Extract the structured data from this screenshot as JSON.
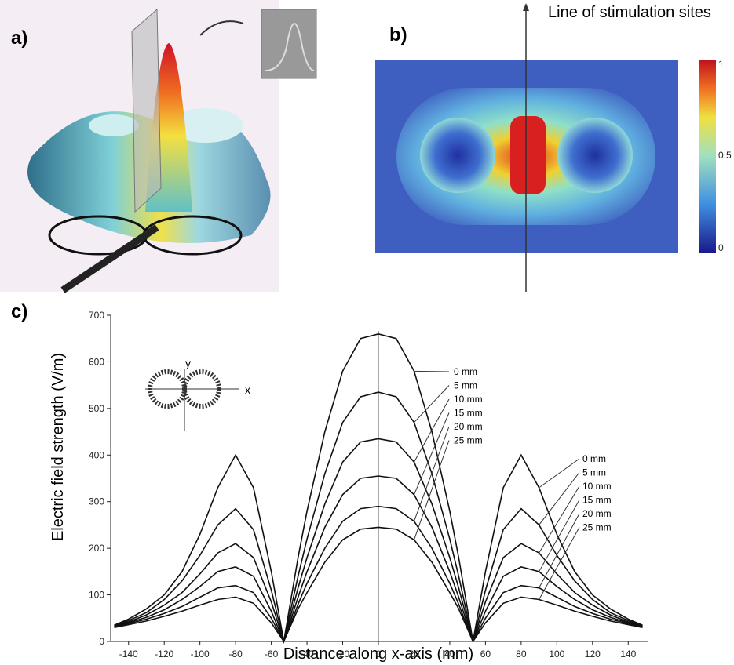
{
  "panels": {
    "a": {
      "label": "a)"
    },
    "b": {
      "label": "b)",
      "annotation": "Line of stimulation sites",
      "colorbar_ticks": [
        "1",
        "0.5",
        "0"
      ]
    }
  },
  "chart_data": {
    "type": "line",
    "label": "c)",
    "x_label": "Distance along x-axis (mm)",
    "y_label": "Electric field strength (V/m)",
    "inset_labels": {
      "x": "x",
      "y": "y"
    },
    "x": [
      -148,
      -140,
      -130,
      -120,
      -110,
      -100,
      -90,
      -80,
      -70,
      -60,
      -53,
      -45,
      -40,
      -30,
      -20,
      -10,
      0,
      10,
      20,
      30,
      40,
      45,
      53,
      60,
      70,
      80,
      90,
      100,
      110,
      120,
      130,
      140,
      148
    ],
    "series": [
      {
        "name": "0 mm",
        "color": "#111111",
        "values": [
          35,
          48,
          70,
          100,
          150,
          230,
          330,
          400,
          330,
          150,
          0,
          180,
          280,
          450,
          580,
          650,
          660,
          650,
          580,
          450,
          280,
          180,
          0,
          150,
          330,
          400,
          330,
          230,
          150,
          100,
          70,
          48,
          35
        ]
      },
      {
        "name": "5 mm",
        "color": "#111111",
        "values": [
          33,
          45,
          62,
          90,
          130,
          185,
          250,
          285,
          240,
          110,
          0,
          140,
          220,
          360,
          470,
          525,
          535,
          525,
          470,
          360,
          220,
          140,
          0,
          110,
          240,
          285,
          250,
          185,
          130,
          90,
          62,
          45,
          33
        ]
      },
      {
        "name": "10 mm",
        "color": "#111111",
        "values": [
          33,
          42,
          57,
          78,
          105,
          145,
          190,
          210,
          180,
          85,
          0,
          115,
          180,
          295,
          385,
          428,
          435,
          428,
          385,
          295,
          180,
          115,
          0,
          85,
          180,
          210,
          190,
          145,
          105,
          78,
          57,
          42,
          33
        ]
      },
      {
        "name": "15 mm",
        "color": "#111111",
        "values": [
          32,
          40,
          52,
          68,
          90,
          118,
          150,
          160,
          140,
          65,
          0,
          95,
          150,
          245,
          315,
          350,
          355,
          350,
          315,
          245,
          150,
          95,
          0,
          65,
          140,
          160,
          150,
          118,
          90,
          68,
          52,
          40,
          32
        ]
      },
      {
        "name": "20 mm",
        "color": "#111111",
        "values": [
          31,
          38,
          48,
          60,
          75,
          95,
          115,
          120,
          105,
          50,
          0,
          80,
          125,
          200,
          258,
          285,
          290,
          285,
          258,
          200,
          125,
          80,
          0,
          50,
          105,
          120,
          115,
          95,
          75,
          60,
          48,
          38,
          31
        ]
      },
      {
        "name": "25 mm",
        "color": "#111111",
        "values": [
          30,
          36,
          44,
          54,
          65,
          78,
          90,
          95,
          82,
          40,
          0,
          70,
          105,
          170,
          218,
          241,
          245,
          241,
          218,
          170,
          105,
          70,
          0,
          40,
          82,
          95,
          90,
          78,
          65,
          54,
          44,
          36,
          30
        ]
      }
    ],
    "xlim": [
      -150,
      150
    ],
    "ylim": [
      0,
      700
    ],
    "xticks": [
      -140,
      -120,
      -100,
      -80,
      -60,
      -40,
      -20,
      0,
      20,
      40,
      60,
      80,
      100,
      120,
      140
    ],
    "yticks": [
      0,
      100,
      200,
      300,
      400,
      500,
      600,
      700
    ]
  }
}
